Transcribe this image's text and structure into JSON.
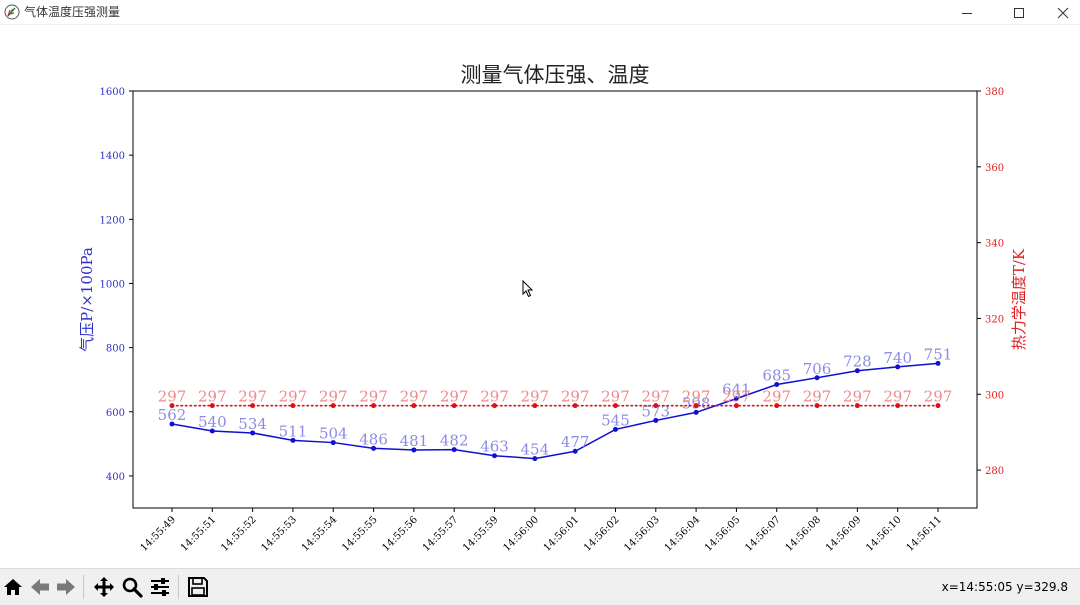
{
  "window": {
    "title": "气体温度压强测量",
    "icon": "feather-app-icon",
    "controls": [
      "minimize-icon",
      "maximize-icon",
      "close-icon"
    ]
  },
  "toolbar": {
    "buttons": [
      {
        "name": "home-button",
        "icon": "home-icon"
      },
      {
        "name": "back-button",
        "icon": "arrow-left-icon"
      },
      {
        "name": "forward-button",
        "icon": "arrow-right-icon"
      },
      {
        "name": "pan-button",
        "icon": "move-icon"
      },
      {
        "name": "zoom-button",
        "icon": "magnifier-icon"
      },
      {
        "name": "configure-button",
        "icon": "sliders-icon"
      },
      {
        "name": "save-button",
        "icon": "save-icon"
      }
    ],
    "coords": "x=14:55:05 y=329.8"
  },
  "chart_data": {
    "type": "line",
    "title": "测量气体压强、温度",
    "categories": [
      "14:55:49",
      "14:55:51",
      "14:55:52",
      "14:55:53",
      "14:55:54",
      "14:55:55",
      "14:55:56",
      "14:55:57",
      "14:55:59",
      "14:56:00",
      "14:56:01",
      "14:56:02",
      "14:56:03",
      "14:56:04",
      "14:56:05",
      "14:56:07",
      "14:56:08",
      "14:56:09",
      "14:56:10",
      "14:56:11"
    ],
    "left_axis": {
      "label": "气压P/×100Pa",
      "ylim": [
        300,
        1600
      ],
      "ticks": [
        400,
        600,
        800,
        1000,
        1200,
        1400,
        1600
      ],
      "color": "#3030c8"
    },
    "right_axis": {
      "label": "热力学温度T/K",
      "ylim": [
        270,
        380
      ],
      "ticks": [
        280,
        300,
        320,
        340,
        360,
        380
      ],
      "color": "#e02020"
    },
    "series": [
      {
        "axis": "left",
        "style": "solid",
        "color": "#1010d0",
        "label_color": "#8c8ce6",
        "values": [
          562,
          540,
          534,
          511,
          504,
          486,
          481,
          482,
          463,
          454,
          477,
          545,
          573,
          598,
          641,
          685,
          706,
          728,
          740,
          751
        ],
        "labels": [
          "562",
          "540",
          "534",
          "511",
          "504",
          "486",
          "481",
          "482",
          "463",
          "454",
          "477",
          "545",
          "573",
          "598",
          "641",
          "685",
          "706",
          "728",
          "740",
          "751"
        ]
      },
      {
        "axis": "right",
        "style": "dotted",
        "color": "#e01010",
        "label_color": "#f08a8a",
        "values": [
          297,
          297,
          297,
          297,
          297,
          297,
          297,
          297,
          297,
          297,
          297,
          297,
          297,
          297,
          297,
          297,
          297,
          297,
          297,
          297
        ],
        "labels": [
          "297",
          "297",
          "297",
          "297",
          "297",
          "297",
          "297",
          "297",
          "297",
          "297",
          "297",
          "297",
          "297",
          "297",
          "297",
          "297",
          "297",
          "297",
          "297",
          "297"
        ]
      }
    ]
  }
}
